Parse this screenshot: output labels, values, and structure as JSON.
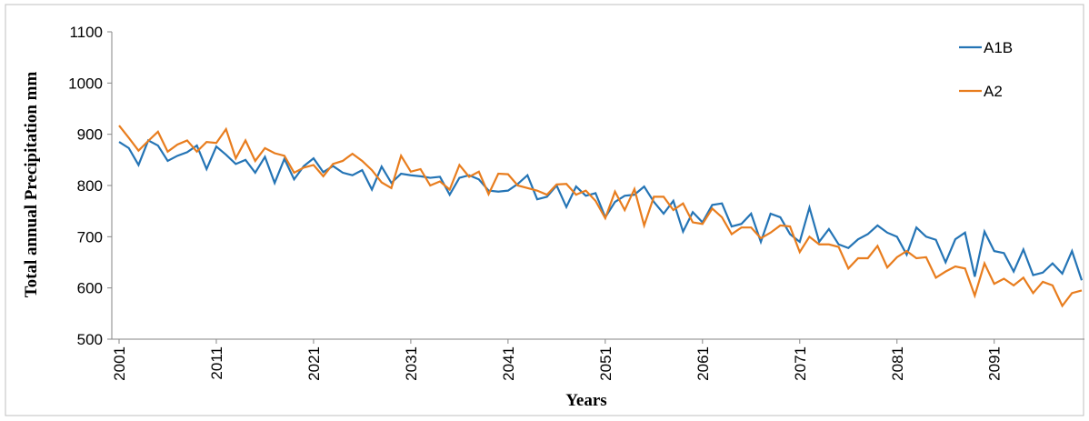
{
  "chart_data": {
    "type": "line",
    "y_label": "Total annual Precipitation mm",
    "x_label": "Years",
    "x": [
      2001,
      2002,
      2003,
      2004,
      2005,
      2006,
      2007,
      2008,
      2009,
      2010,
      2011,
      2012,
      2013,
      2014,
      2015,
      2016,
      2017,
      2018,
      2019,
      2020,
      2021,
      2022,
      2023,
      2024,
      2025,
      2026,
      2027,
      2028,
      2029,
      2030,
      2031,
      2032,
      2033,
      2034,
      2035,
      2036,
      2037,
      2038,
      2039,
      2040,
      2041,
      2042,
      2043,
      2044,
      2045,
      2046,
      2047,
      2048,
      2049,
      2050,
      2051,
      2052,
      2053,
      2054,
      2055,
      2056,
      2057,
      2058,
      2059,
      2060,
      2061,
      2062,
      2063,
      2064,
      2065,
      2066,
      2067,
      2068,
      2069,
      2070,
      2071,
      2072,
      2073,
      2074,
      2075,
      2076,
      2077,
      2078,
      2079,
      2080,
      2081,
      2082,
      2083,
      2084,
      2085,
      2086,
      2087,
      2088,
      2089,
      2090,
      2091,
      2092,
      2093,
      2094,
      2095,
      2096,
      2097,
      2098,
      2099,
      2100
    ],
    "series": [
      {
        "name": "A1B",
        "color": "#2474b5",
        "values": [
          885,
          873,
          840,
          888,
          878,
          848,
          858,
          865,
          878,
          832,
          876,
          860,
          842,
          850,
          825,
          856,
          805,
          852,
          812,
          838,
          853,
          826,
          838,
          825,
          820,
          830,
          792,
          837,
          805,
          823,
          820,
          818,
          815,
          817,
          782,
          815,
          820,
          812,
          790,
          788,
          790,
          803,
          820,
          773,
          778,
          800,
          758,
          798,
          780,
          785,
          738,
          768,
          780,
          782,
          798,
          768,
          745,
          770,
          710,
          748,
          728,
          762,
          765,
          720,
          725,
          745,
          690,
          745,
          738,
          705,
          690,
          757,
          690,
          715,
          685,
          678,
          695,
          705,
          722,
          708,
          700,
          665,
          718,
          700,
          694,
          650,
          695,
          708,
          622,
          710,
          672,
          668,
          632,
          675,
          625,
          630,
          648,
          628,
          672,
          615
        ]
      },
      {
        "name": "A2",
        "color": "#e87d1e",
        "values": [
          917,
          893,
          868,
          887,
          905,
          866,
          880,
          888,
          866,
          885,
          883,
          910,
          853,
          888,
          848,
          873,
          863,
          858,
          825,
          835,
          840,
          818,
          842,
          848,
          862,
          848,
          830,
          806,
          795,
          858,
          827,
          832,
          800,
          808,
          792,
          840,
          817,
          827,
          783,
          823,
          822,
          800,
          795,
          790,
          782,
          802,
          803,
          782,
          790,
          770,
          736,
          788,
          752,
          793,
          722,
          778,
          778,
          752,
          765,
          728,
          725,
          755,
          738,
          705,
          718,
          718,
          697,
          708,
          722,
          720,
          670,
          700,
          685,
          685,
          680,
          638,
          658,
          658,
          682,
          640,
          660,
          672,
          658,
          660,
          620,
          632,
          642,
          638,
          585,
          648,
          608,
          618,
          605,
          620,
          590,
          612,
          605,
          565,
          590,
          595
        ]
      }
    ],
    "xlim": [
      2001,
      2100
    ],
    "xticks": [
      2001,
      2011,
      2021,
      2031,
      2041,
      2051,
      2061,
      2071,
      2081,
      2091
    ],
    "ylim": [
      500,
      1100
    ],
    "yticks": [
      500,
      600,
      700,
      800,
      900,
      1000,
      1100
    ],
    "legend": "top-right"
  }
}
